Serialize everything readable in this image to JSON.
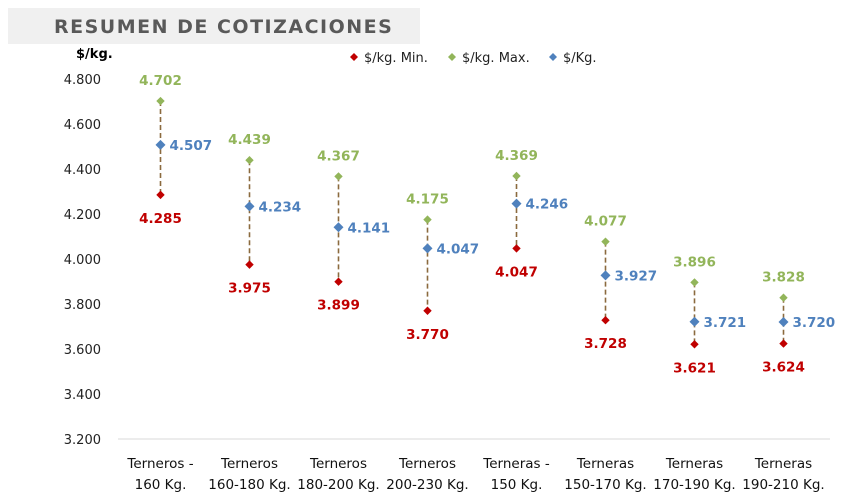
{
  "header": {
    "title": "RESUMEN DE COTIZACIONES"
  },
  "colors": {
    "min": "#c00000",
    "max": "#92b55a",
    "avg": "#4f81bd",
    "connector": "#8b6a3e",
    "axis": "#d9d9d9"
  },
  "chart_data": {
    "type": "scatter",
    "title": "",
    "ylabel": "$/kg.",
    "ylim": [
      3.2,
      4.8
    ],
    "yticks": [
      "4.800",
      "4.600",
      "4.400",
      "4.200",
      "4.000",
      "3.800",
      "3.600",
      "3.400",
      "3.200"
    ],
    "categories": [
      [
        "Terneros -",
        "160 Kg."
      ],
      [
        "Terneros",
        "160-180 Kg."
      ],
      [
        "Terneros",
        "180-200 Kg."
      ],
      [
        "Terneros",
        "200-230 Kg."
      ],
      [
        "Terneras -",
        "150 Kg."
      ],
      [
        "Terneras",
        "150-170 Kg."
      ],
      [
        "Terneras",
        "170-190 Kg."
      ],
      [
        "Terneras",
        "190-210 Kg."
      ]
    ],
    "series": [
      {
        "name": "$/kg. Min.",
        "values": [
          4.285,
          3.975,
          3.899,
          3.77,
          4.047,
          3.728,
          3.621,
          3.624
        ],
        "labels": [
          "4.285",
          "3.975",
          "3.899",
          "3.770",
          "4.047",
          "3.728",
          "3.621",
          "3.624"
        ]
      },
      {
        "name": "$/kg. Max.",
        "values": [
          4.702,
          4.439,
          4.367,
          4.175,
          4.369,
          4.077,
          3.896,
          3.828
        ],
        "labels": [
          "4.702",
          "4.439",
          "4.367",
          "4.175",
          "4.369",
          "4.077",
          "3.896",
          "3.828"
        ]
      },
      {
        "name": "$/Kg.",
        "values": [
          4.507,
          4.234,
          4.141,
          4.047,
          4.246,
          3.927,
          3.721,
          3.72
        ],
        "labels": [
          "4.507",
          "4.234",
          "4.141",
          "4.047",
          "4.246",
          "3.927",
          "3.721",
          "3.720"
        ]
      }
    ],
    "legend": "top-center",
    "grid": false
  }
}
